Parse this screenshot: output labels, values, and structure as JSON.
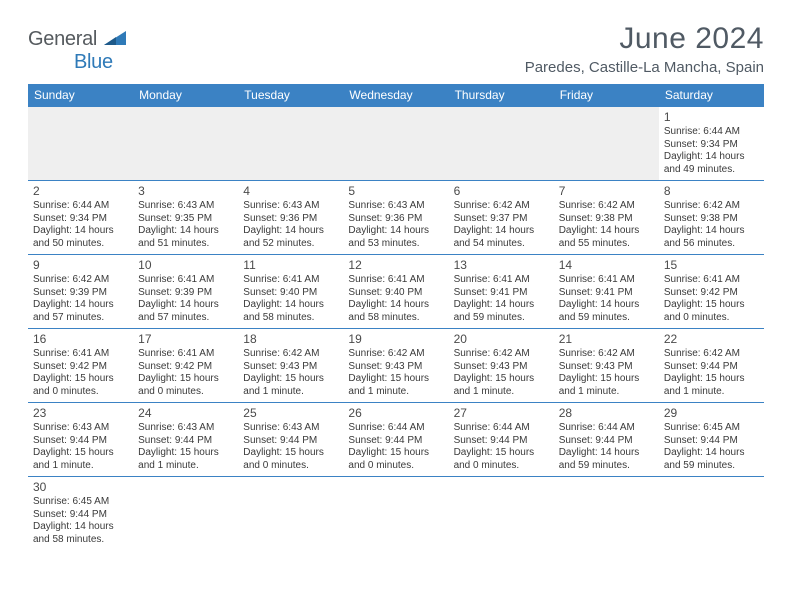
{
  "brand": {
    "text1": "General",
    "text2": "Blue",
    "tri_color": "#2f7ab8"
  },
  "header": {
    "title": "June 2024",
    "location": "Paredes, Castille-La Mancha, Spain"
  },
  "colors": {
    "header_bg": "#3b82c4",
    "header_fg": "#ffffff",
    "border": "#3b82c4",
    "text": "#3a3a3a",
    "title": "#505a64",
    "empty_bg": "#efefef"
  },
  "daynames": [
    "Sunday",
    "Monday",
    "Tuesday",
    "Wednesday",
    "Thursday",
    "Friday",
    "Saturday"
  ],
  "weeks": [
    [
      null,
      null,
      null,
      null,
      null,
      null,
      {
        "n": "1",
        "sr": "Sunrise: 6:44 AM",
        "ss": "Sunset: 9:34 PM",
        "dl": "Daylight: 14 hours and 49 minutes."
      }
    ],
    [
      {
        "n": "2",
        "sr": "Sunrise: 6:44 AM",
        "ss": "Sunset: 9:34 PM",
        "dl": "Daylight: 14 hours and 50 minutes."
      },
      {
        "n": "3",
        "sr": "Sunrise: 6:43 AM",
        "ss": "Sunset: 9:35 PM",
        "dl": "Daylight: 14 hours and 51 minutes."
      },
      {
        "n": "4",
        "sr": "Sunrise: 6:43 AM",
        "ss": "Sunset: 9:36 PM",
        "dl": "Daylight: 14 hours and 52 minutes."
      },
      {
        "n": "5",
        "sr": "Sunrise: 6:43 AM",
        "ss": "Sunset: 9:36 PM",
        "dl": "Daylight: 14 hours and 53 minutes."
      },
      {
        "n": "6",
        "sr": "Sunrise: 6:42 AM",
        "ss": "Sunset: 9:37 PM",
        "dl": "Daylight: 14 hours and 54 minutes."
      },
      {
        "n": "7",
        "sr": "Sunrise: 6:42 AM",
        "ss": "Sunset: 9:38 PM",
        "dl": "Daylight: 14 hours and 55 minutes."
      },
      {
        "n": "8",
        "sr": "Sunrise: 6:42 AM",
        "ss": "Sunset: 9:38 PM",
        "dl": "Daylight: 14 hours and 56 minutes."
      }
    ],
    [
      {
        "n": "9",
        "sr": "Sunrise: 6:42 AM",
        "ss": "Sunset: 9:39 PM",
        "dl": "Daylight: 14 hours and 57 minutes."
      },
      {
        "n": "10",
        "sr": "Sunrise: 6:41 AM",
        "ss": "Sunset: 9:39 PM",
        "dl": "Daylight: 14 hours and 57 minutes."
      },
      {
        "n": "11",
        "sr": "Sunrise: 6:41 AM",
        "ss": "Sunset: 9:40 PM",
        "dl": "Daylight: 14 hours and 58 minutes."
      },
      {
        "n": "12",
        "sr": "Sunrise: 6:41 AM",
        "ss": "Sunset: 9:40 PM",
        "dl": "Daylight: 14 hours and 58 minutes."
      },
      {
        "n": "13",
        "sr": "Sunrise: 6:41 AM",
        "ss": "Sunset: 9:41 PM",
        "dl": "Daylight: 14 hours and 59 minutes."
      },
      {
        "n": "14",
        "sr": "Sunrise: 6:41 AM",
        "ss": "Sunset: 9:41 PM",
        "dl": "Daylight: 14 hours and 59 minutes."
      },
      {
        "n": "15",
        "sr": "Sunrise: 6:41 AM",
        "ss": "Sunset: 9:42 PM",
        "dl": "Daylight: 15 hours and 0 minutes."
      }
    ],
    [
      {
        "n": "16",
        "sr": "Sunrise: 6:41 AM",
        "ss": "Sunset: 9:42 PM",
        "dl": "Daylight: 15 hours and 0 minutes."
      },
      {
        "n": "17",
        "sr": "Sunrise: 6:41 AM",
        "ss": "Sunset: 9:42 PM",
        "dl": "Daylight: 15 hours and 0 minutes."
      },
      {
        "n": "18",
        "sr": "Sunrise: 6:42 AM",
        "ss": "Sunset: 9:43 PM",
        "dl": "Daylight: 15 hours and 1 minute."
      },
      {
        "n": "19",
        "sr": "Sunrise: 6:42 AM",
        "ss": "Sunset: 9:43 PM",
        "dl": "Daylight: 15 hours and 1 minute."
      },
      {
        "n": "20",
        "sr": "Sunrise: 6:42 AM",
        "ss": "Sunset: 9:43 PM",
        "dl": "Daylight: 15 hours and 1 minute."
      },
      {
        "n": "21",
        "sr": "Sunrise: 6:42 AM",
        "ss": "Sunset: 9:43 PM",
        "dl": "Daylight: 15 hours and 1 minute."
      },
      {
        "n": "22",
        "sr": "Sunrise: 6:42 AM",
        "ss": "Sunset: 9:44 PM",
        "dl": "Daylight: 15 hours and 1 minute."
      }
    ],
    [
      {
        "n": "23",
        "sr": "Sunrise: 6:43 AM",
        "ss": "Sunset: 9:44 PM",
        "dl": "Daylight: 15 hours and 1 minute."
      },
      {
        "n": "24",
        "sr": "Sunrise: 6:43 AM",
        "ss": "Sunset: 9:44 PM",
        "dl": "Daylight: 15 hours and 1 minute."
      },
      {
        "n": "25",
        "sr": "Sunrise: 6:43 AM",
        "ss": "Sunset: 9:44 PM",
        "dl": "Daylight: 15 hours and 0 minutes."
      },
      {
        "n": "26",
        "sr": "Sunrise: 6:44 AM",
        "ss": "Sunset: 9:44 PM",
        "dl": "Daylight: 15 hours and 0 minutes."
      },
      {
        "n": "27",
        "sr": "Sunrise: 6:44 AM",
        "ss": "Sunset: 9:44 PM",
        "dl": "Daylight: 15 hours and 0 minutes."
      },
      {
        "n": "28",
        "sr": "Sunrise: 6:44 AM",
        "ss": "Sunset: 9:44 PM",
        "dl": "Daylight: 14 hours and 59 minutes."
      },
      {
        "n": "29",
        "sr": "Sunrise: 6:45 AM",
        "ss": "Sunset: 9:44 PM",
        "dl": "Daylight: 14 hours and 59 minutes."
      }
    ],
    [
      {
        "n": "30",
        "sr": "Sunrise: 6:45 AM",
        "ss": "Sunset: 9:44 PM",
        "dl": "Daylight: 14 hours and 58 minutes."
      },
      null,
      null,
      null,
      null,
      null,
      null
    ]
  ]
}
